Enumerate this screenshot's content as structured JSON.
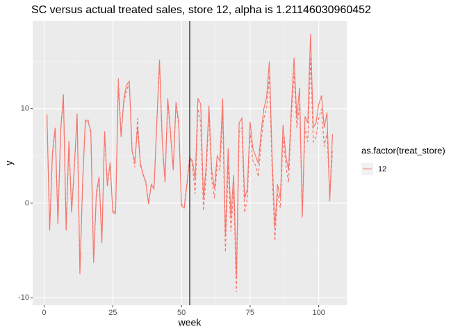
{
  "chart_data": {
    "type": "line",
    "title": "SC versus actual treated sales, store 12, alpha is  1.21146030960452",
    "x_label": "week",
    "y_label": "y",
    "legend_title": "as.factor(treat_store)",
    "x": [
      1,
      2,
      3,
      4,
      5,
      6,
      7,
      8,
      9,
      10,
      11,
      12,
      13,
      14,
      15,
      16,
      17,
      18,
      19,
      20,
      21,
      22,
      23,
      24,
      25,
      26,
      27,
      28,
      29,
      30,
      31,
      32,
      33,
      34,
      35,
      36,
      37,
      38,
      39,
      40,
      41,
      42,
      43,
      44,
      45,
      46,
      47,
      48,
      49,
      50,
      51,
      52,
      53,
      54,
      55,
      56,
      57,
      58,
      59,
      60,
      61,
      62,
      63,
      64,
      65,
      66,
      67,
      68,
      69,
      70,
      71,
      72,
      73,
      74,
      75,
      76,
      77,
      78,
      79,
      80,
      81,
      82,
      83,
      84,
      85,
      86,
      87,
      88,
      89,
      90,
      91,
      92,
      93,
      94,
      95,
      96,
      97,
      98,
      99,
      100,
      101,
      102,
      103,
      104,
      105
    ],
    "series": [
      {
        "name": "12",
        "color": "#f8766d",
        "dash": "solid",
        "values": [
          9.4,
          -2.9,
          5.3,
          8.0,
          -2.2,
          7.8,
          11.5,
          -2.9,
          6.6,
          -1.0,
          4.0,
          9.5,
          -7.5,
          2.2,
          8.8,
          8.6,
          7.6,
          -6.3,
          1.1,
          2.8,
          -4.2,
          7.6,
          1.8,
          4.3,
          -1.0,
          -1.1,
          12.5,
          7.0,
          11.0,
          12.5,
          12.9,
          5.5,
          4.4,
          8.0,
          4.3,
          3.0,
          2.3,
          -0.1,
          2.0,
          1.5,
          8.5,
          15.2,
          6.5,
          2.2,
          11.1,
          7.5,
          3.5,
          10.7,
          8.5,
          -0.3,
          -0.5,
          2.0,
          4.8,
          4.5,
          2.5,
          11.1,
          10.5,
          0.5,
          4.0,
          10.3,
          3.5,
          1.5,
          5.0,
          4.5,
          11.1,
          -3.5,
          5.8,
          -1.5,
          3.0,
          -8.0,
          8.5,
          9.0,
          0.5,
          1.5,
          8.6,
          5.8,
          5.0,
          4.2,
          7.5,
          10.0,
          11.2,
          15.0,
          5.0,
          -2.5,
          2.0,
          0.5,
          8.3,
          5.0,
          3.5,
          10.0,
          15.4,
          9.0,
          12.2,
          -1.5,
          9.2,
          8.5,
          17.9,
          8.0,
          8.5,
          10.5,
          11.4,
          8.0,
          9.6,
          0.2,
          7.3
        ]
      },
      {
        "color": "#f8766d",
        "dash": "dashed",
        "values": [
          9.2,
          -2.7,
          5.1,
          7.8,
          -2.0,
          7.6,
          11.2,
          -2.6,
          6.4,
          -0.8,
          3.8,
          9.3,
          -7.2,
          2.4,
          8.6,
          8.8,
          7.4,
          -6.0,
          0.8,
          2.6,
          -4.0,
          7.4,
          2.0,
          4.1,
          -0.8,
          -0.9,
          13.2,
          7.3,
          10.6,
          12.0,
          12.6,
          5.8,
          3.8,
          9.0,
          4.0,
          3.2,
          2.1,
          0.1,
          1.8,
          1.7,
          8.3,
          14.8,
          6.7,
          2.4,
          10.8,
          7.2,
          3.7,
          10.4,
          8.2,
          -0.1,
          -0.3,
          2.2,
          5.0,
          4.0,
          1.0,
          10.0,
          8.5,
          -0.8,
          3.0,
          9.5,
          2.5,
          0.5,
          4.0,
          3.5,
          9.5,
          -5.2,
          4.0,
          -3.0,
          1.5,
          -9.4,
          7.5,
          8.0,
          -1.0,
          0.5,
          7.5,
          4.5,
          4.0,
          2.8,
          6.5,
          9.0,
          10.0,
          13.5,
          3.5,
          -4.0,
          1.0,
          -0.5,
          7.0,
          4.0,
          2.2,
          9.0,
          13.8,
          8.0,
          10.5,
          -1.0,
          8.0,
          6.5,
          15.5,
          6.5,
          7.0,
          9.0,
          10.0,
          6.0,
          7.5,
          0.8,
          5.5
        ]
      }
    ],
    "vline": 53,
    "xlim": [
      -4.2,
      110.2
    ],
    "xticks": [
      0,
      25,
      50,
      75,
      100
    ],
    "ylim": [
      -10.8,
      19.3
    ],
    "yticks": [
      -10,
      0,
      10
    ],
    "grid": true
  }
}
